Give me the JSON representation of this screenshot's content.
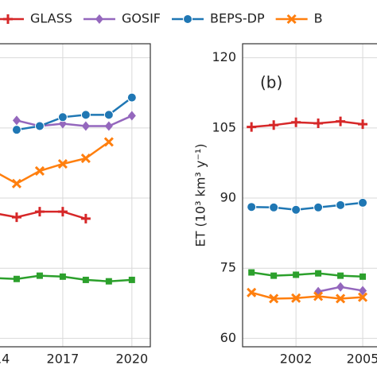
{
  "chart_data": [
    {
      "type": "line",
      "xlim": [
        2013,
        2020.8
      ],
      "ylim": [
        58.2,
        123
      ],
      "yticks": [
        60,
        75,
        90,
        105,
        120
      ],
      "xticks": [
        2014,
        2017,
        2020
      ],
      "grid": true,
      "series": [
        {
          "name": "GLASS",
          "color": "#d62728",
          "marker": "plus",
          "x": [
            2014,
            2015,
            2016,
            2017,
            2018
          ],
          "values": [
            86.8,
            85.9,
            87.1,
            87.1,
            85.6
          ]
        },
        {
          "name": "GOSIF",
          "color": "#9467bd",
          "marker": "diamond",
          "x": [
            2015,
            2016,
            2017,
            2018,
            2019,
            2020
          ],
          "values": [
            106.6,
            105.4,
            105.9,
            105.4,
            105.4,
            107.6
          ]
        },
        {
          "name": "BEPS-DP",
          "color": "#1f77b4",
          "marker": "circle",
          "x": [
            2015,
            2016,
            2017,
            2018,
            2019,
            2020
          ],
          "values": [
            104.6,
            105.4,
            107.3,
            107.8,
            107.8,
            111.5
          ]
        },
        {
          "name": "B",
          "color": "#ff7f0e",
          "marker": "x",
          "x": [
            2014,
            2015,
            2016,
            2017,
            2018,
            2019
          ],
          "values": [
            95.8,
            93.1,
            95.8,
            97.3,
            98.5,
            102.0
          ]
        },
        {
          "color": "#2ca02c",
          "marker": "square",
          "x": [
            2014,
            2015,
            2016,
            2017,
            2018,
            2019,
            2020
          ],
          "values": [
            72.9,
            72.7,
            73.4,
            73.2,
            72.5,
            72.2,
            72.5
          ]
        }
      ]
    },
    {
      "type": "line",
      "panel_label": "(b)",
      "ylabel": "ET (10³ km³ y⁻¹)",
      "xlim": [
        1999.6,
        2006.5
      ],
      "ylim": [
        58.2,
        123
      ],
      "yticks": [
        60,
        75,
        90,
        105,
        120
      ],
      "xticks": [
        2002,
        2005
      ],
      "grid": true,
      "series": [
        {
          "color": "#d62728",
          "marker": "plus",
          "x": [
            2000,
            2001,
            2002,
            2003,
            2004,
            2005
          ],
          "values": [
            105.2,
            105.6,
            106.2,
            106.0,
            106.4,
            105.8
          ]
        },
        {
          "color": "#9467bd",
          "marker": "diamond",
          "x": [
            2003,
            2004,
            2005
          ],
          "values": [
            70.0,
            71.0,
            70.2
          ]
        },
        {
          "color": "#1f77b4",
          "marker": "circle",
          "x": [
            2000,
            2001,
            2002,
            2003,
            2004,
            2005
          ],
          "values": [
            88.1,
            88.0,
            87.5,
            88.0,
            88.5,
            89.0
          ]
        },
        {
          "color": "#ff7f0e",
          "marker": "x",
          "x": [
            2000,
            2001,
            2002,
            2003,
            2004,
            2005
          ],
          "values": [
            69.8,
            68.5,
            68.6,
            69.0,
            68.5,
            68.8
          ]
        },
        {
          "color": "#2ca02c",
          "marker": "square",
          "x": [
            2000,
            2001,
            2002,
            2003,
            2004,
            2005
          ],
          "values": [
            74.1,
            73.4,
            73.6,
            73.9,
            73.4,
            73.2
          ]
        }
      ]
    }
  ]
}
